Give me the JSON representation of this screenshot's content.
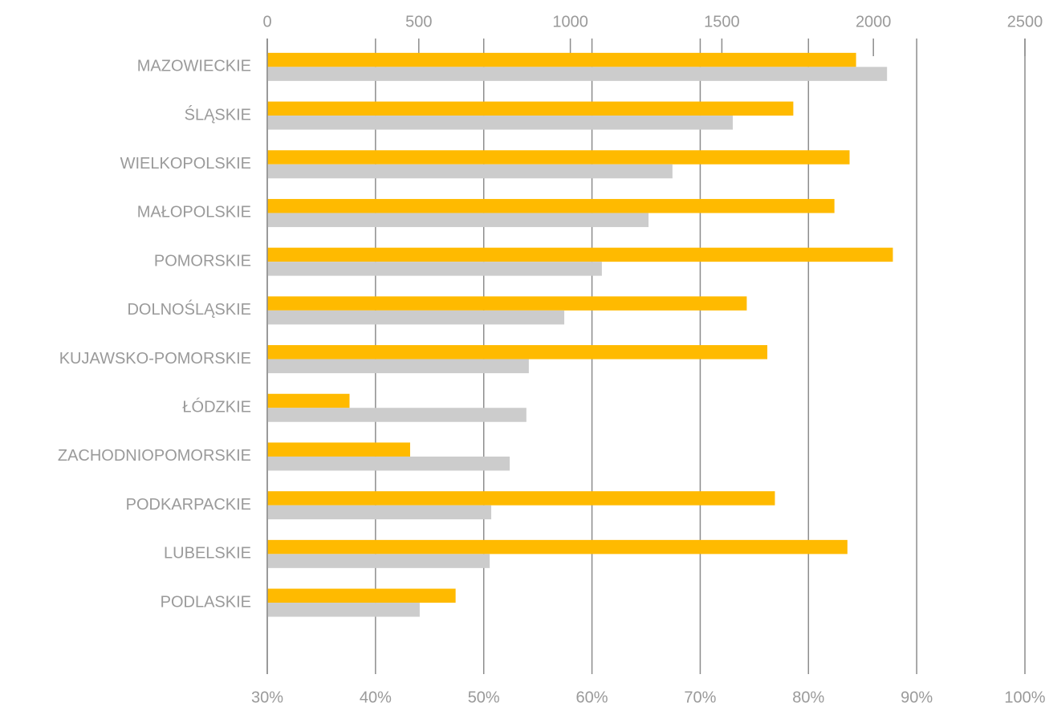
{
  "chart_data": {
    "type": "bar",
    "orientation": "horizontal",
    "categories": [
      "MAZOWIECKIE",
      "ŚLĄSKIE",
      "WIELKOPOLSKIE",
      "MAŁOPOLSKIE",
      "POMORSKIE",
      "DOLNOŚLĄSKIE",
      "KUJAWSKO-POMORSKIE",
      "ŁÓDZKIE",
      "ZACHODNIOPOMORSKIE",
      "PODKARPACKIE",
      "LUBELSKIE",
      "PODLASKIE"
    ],
    "series": [
      {
        "color": "#ffba00",
        "axis": "x2",
        "values": [
          84.4,
          78.6,
          83.8,
          82.4,
          87.8,
          74.3,
          76.2,
          37.6,
          43.2,
          76.9,
          83.6,
          47.4
        ]
      },
      {
        "color": "#cccccc",
        "axis": "x",
        "values": [
          2045,
          1536,
          1337,
          1258,
          1104,
          980,
          863,
          855,
          800,
          739,
          734,
          503
        ]
      }
    ],
    "xlim": [
      0,
      2500
    ],
    "xticks": [
      0,
      500,
      1000,
      1500,
      2000,
      2500
    ],
    "x2lim": [
      30,
      100
    ],
    "x2ticks": [
      {
        "value": 30,
        "label": "30%"
      },
      {
        "value": 40,
        "label": "40%"
      },
      {
        "value": 50,
        "label": "50%"
      },
      {
        "value": 60,
        "label": "60%"
      },
      {
        "value": 70,
        "label": "70%"
      },
      {
        "value": 80,
        "label": "80%"
      },
      {
        "value": 90,
        "label": "90%"
      },
      {
        "value": 100,
        "label": "100%"
      }
    ],
    "grid": true
  }
}
